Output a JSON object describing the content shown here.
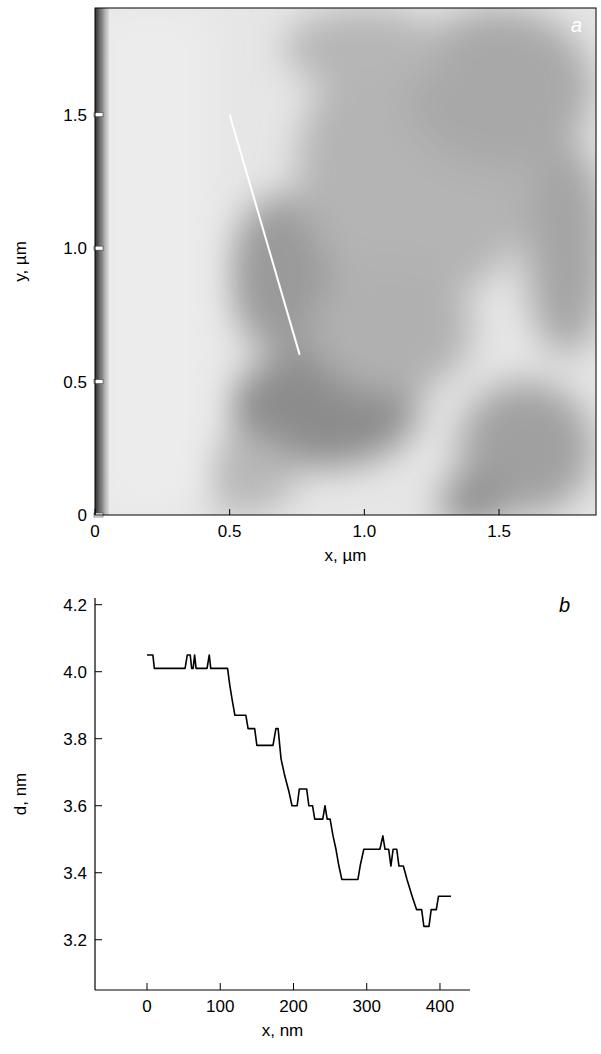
{
  "chart_data": [
    {
      "type": "image",
      "label": "a",
      "x_label": "x, µm",
      "y_label": "y, µm",
      "xlim": [
        0,
        1.86
      ],
      "ylim": [
        0,
        1.9
      ],
      "xticks": [
        0,
        0.5,
        {
          "value": 1,
          "label": "1.0"
        },
        1.5
      ],
      "yticks": [
        0,
        0.5,
        {
          "value": 1,
          "label": "1.0"
        },
        1.5
      ],
      "x": [
        0.5,
        0.76
      ],
      "series": [
        {
          "type": "line",
          "color": "#ffffff",
          "values": [
            1.5,
            0.6
          ]
        }
      ]
    },
    {
      "type": "line",
      "label": "b",
      "x_label": "x, nm",
      "y_label": "d, nm",
      "xlim": [
        -71,
        441
      ],
      "ylim": [
        3.05,
        4.22
      ],
      "xticks": [
        0,
        100,
        200,
        300,
        400
      ],
      "yticks": [
        3.2,
        3.4,
        3.6,
        3.8,
        {
          "value": 4,
          "label": "4.0"
        },
        4.2
      ],
      "x": [
        0,
        8,
        10,
        52,
        55,
        59,
        61,
        63,
        65,
        67,
        82,
        85,
        87,
        110,
        113,
        116,
        120,
        135,
        138,
        147,
        150,
        172,
        176,
        179,
        183,
        188,
        194,
        198,
        205,
        208,
        218,
        221,
        226,
        229,
        240,
        243,
        246,
        250,
        254,
        258,
        262,
        266,
        288,
        291,
        296,
        318,
        322,
        325,
        330,
        333,
        336,
        341,
        344,
        350,
        355,
        362,
        368,
        375,
        378,
        385,
        388,
        395,
        398,
        415
      ],
      "series": [
        {
          "color": "#000000",
          "values": [
            4.05,
            4.05,
            4.01,
            4.01,
            4.05,
            4.05,
            4.01,
            4.01,
            4.05,
            4.01,
            4.01,
            4.05,
            4.01,
            4.01,
            3.96,
            3.92,
            3.87,
            3.87,
            3.83,
            3.83,
            3.78,
            3.78,
            3.83,
            3.83,
            3.74,
            3.69,
            3.64,
            3.6,
            3.6,
            3.65,
            3.65,
            3.6,
            3.6,
            3.56,
            3.56,
            3.6,
            3.56,
            3.56,
            3.51,
            3.47,
            3.42,
            3.38,
            3.38,
            3.42,
            3.47,
            3.47,
            3.51,
            3.47,
            3.47,
            3.42,
            3.47,
            3.47,
            3.42,
            3.42,
            3.38,
            3.33,
            3.29,
            3.29,
            3.24,
            3.24,
            3.29,
            3.29,
            3.33,
            3.33
          ]
        }
      ]
    }
  ]
}
